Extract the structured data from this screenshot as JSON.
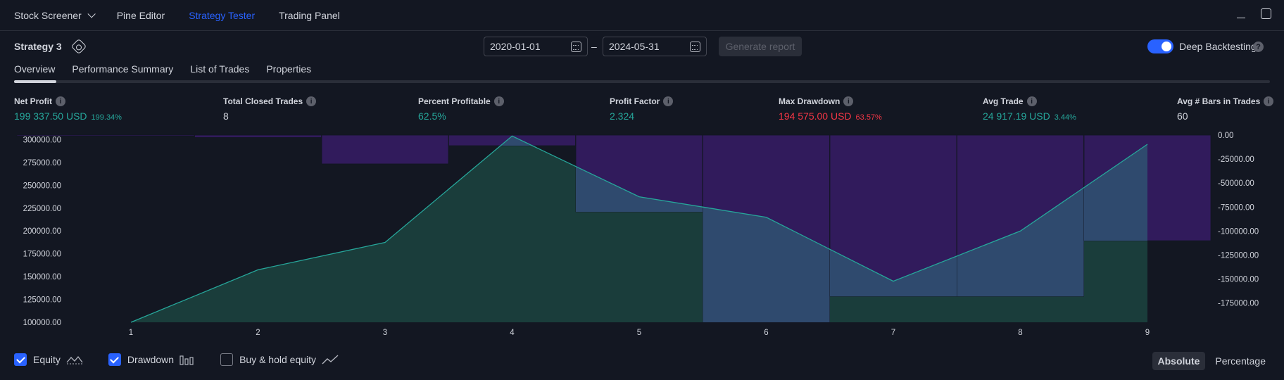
{
  "top_tabs": [
    {
      "label": "Stock Screener"
    },
    {
      "label": "Pine Editor"
    },
    {
      "label": "Strategy Tester"
    },
    {
      "label": "Trading Panel"
    }
  ],
  "active_top_tab": "Strategy Tester",
  "header": {
    "strategy_name": "Strategy 3",
    "start_date": "2020-01-01",
    "end_date": "2024-05-31",
    "date_separator": "–",
    "generate_label": "Generate report",
    "deep_backtesting_label": "Deep Backtesting",
    "deep_backtesting_on": true,
    "help_glyph": "?"
  },
  "sub_tabs": [
    {
      "label": "Overview"
    },
    {
      "label": "Performance Summary"
    },
    {
      "label": "List of Trades"
    },
    {
      "label": "Properties"
    }
  ],
  "metrics": [
    {
      "label": "Net Profit",
      "value": "199 337.50 USD",
      "pct": "199.34%",
      "color": "green"
    },
    {
      "label": "Total Closed Trades",
      "value": "8",
      "pct": "",
      "color": "white"
    },
    {
      "label": "Percent Profitable",
      "value": "62.5%",
      "pct": "",
      "color": "green"
    },
    {
      "label": "Profit Factor",
      "value": "2.324",
      "pct": "",
      "color": "green"
    },
    {
      "label": "Max Drawdown",
      "value": "194 575.00 USD",
      "pct": "63.57%",
      "color": "red"
    },
    {
      "label": "Avg Trade",
      "value": "24 917.19 USD",
      "pct": "3.44%",
      "color": "green"
    },
    {
      "label": "Avg # Bars in Trades",
      "value": "60",
      "pct": "",
      "color": "white"
    }
  ],
  "info_glyph": "i",
  "chart_data": {
    "type": "area",
    "x": [
      1,
      2,
      3,
      4,
      5,
      6,
      7,
      8,
      9
    ],
    "x_tick_labels": [
      "1",
      "2",
      "3",
      "4",
      "5",
      "6",
      "7",
      "8",
      "9"
    ],
    "series": [
      {
        "name": "Equity",
        "type": "area",
        "values": [
          100000,
          157500,
          187500,
          304000,
          237500,
          215000,
          145000,
          200000,
          295000
        ]
      },
      {
        "name": "Drawdown",
        "type": "bar",
        "values": [
          -1000,
          -2500,
          -30000,
          -11000,
          -80000,
          -195000,
          -168000,
          -168000,
          -110000
        ]
      }
    ],
    "y_left": {
      "min": 100000,
      "max": 305000,
      "ticks": [
        "300000.00",
        "275000.00",
        "250000.00",
        "225000.00",
        "200000.00",
        "175000.00",
        "150000.00",
        "125000.00",
        "100000.00"
      ]
    },
    "y_right": {
      "min": -195000,
      "max": 0,
      "ticks": [
        "0.00",
        "-25000.00",
        "-50000.00",
        "-75000.00",
        "-100000.00",
        "-125000.00",
        "-150000.00",
        "-175000.00"
      ]
    },
    "colors": {
      "equity_line": "#26a69a",
      "equity_fill": "#1a3d3b",
      "drawdown_fill": "#311b5c",
      "equity_over_drawdown": "#2f4a6e"
    }
  },
  "legend": [
    {
      "label": "Equity",
      "checked": true,
      "icon": "equity-icon"
    },
    {
      "label": "Drawdown",
      "checked": true,
      "icon": "drawdown-icon"
    },
    {
      "label": "Buy & hold equity",
      "checked": false,
      "icon": "buy-hold-icon"
    }
  ],
  "view_modes": [
    {
      "label": "Absolute",
      "active": true
    },
    {
      "label": "Percentage",
      "active": false
    }
  ]
}
